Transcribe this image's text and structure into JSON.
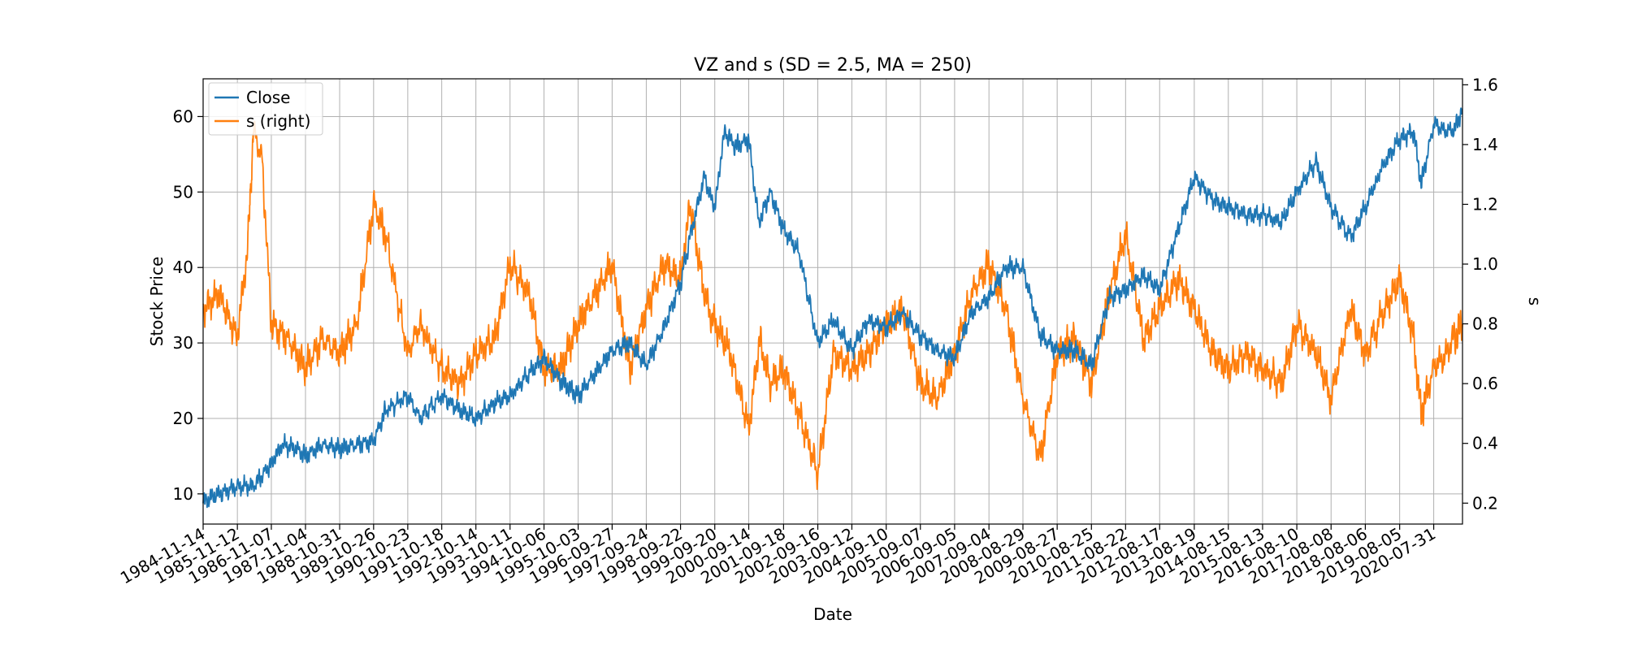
{
  "chart_data": {
    "type": "line",
    "title": "VZ and s (SD = 2.5, MA = 250)",
    "xlabel": "Date",
    "ylabel": "Stock Price",
    "ylabel_right": "s",
    "grid": true,
    "legend_position": "top-left",
    "x_tick_labels": [
      "1984-11-14",
      "1985-11-12",
      "1986-11-07",
      "1987-11-04",
      "1988-10-31",
      "1989-10-26",
      "1990-10-23",
      "1991-10-18",
      "1992-10-14",
      "1993-10-11",
      "1994-10-06",
      "1995-10-03",
      "1996-09-27",
      "1997-09-24",
      "1998-09-22",
      "1999-09-20",
      "2000-09-14",
      "2001-09-18",
      "2002-09-16",
      "2003-09-12",
      "2004-09-10",
      "2005-09-07",
      "2006-09-05",
      "2007-09-04",
      "2008-08-29",
      "2009-08-27",
      "2010-08-25",
      "2011-08-22",
      "2012-08-17",
      "2013-08-19",
      "2014-08-15",
      "2015-08-13",
      "2016-08-10",
      "2017-08-08",
      "2018-08-06",
      "2019-08-05",
      "2020-07-31"
    ],
    "xlim": [
      "1984-11-14",
      "2021-06-01"
    ],
    "ylim": [
      6,
      65
    ],
    "ylim_right": [
      0.13,
      1.62
    ],
    "y_ticks": [
      10,
      20,
      30,
      40,
      50,
      60
    ],
    "y_ticks_right": [
      0.2,
      0.4,
      0.6,
      0.8,
      1.0,
      1.2,
      1.4,
      1.6
    ],
    "series": [
      {
        "name": "Close",
        "axis": "left",
        "color": "#1f77b4",
        "x": [
          "1984-11-14",
          "1985-05-01",
          "1985-11-12",
          "1986-05-01",
          "1986-11-07",
          "1987-03-01",
          "1987-08-01",
          "1987-11-04",
          "1988-05-01",
          "1988-10-31",
          "1989-05-01",
          "1989-10-26",
          "1990-03-01",
          "1990-10-23",
          "1991-03-01",
          "1991-10-18",
          "1992-05-01",
          "1992-10-14",
          "1993-05-01",
          "1993-10-11",
          "1994-05-01",
          "1994-10-06",
          "1995-04-01",
          "1995-10-03",
          "1996-04-01",
          "1996-09-27",
          "1997-04-01",
          "1997-09-24",
          "1998-04-01",
          "1998-09-22",
          "1999-01-01",
          "1999-06-01",
          "1999-09-20",
          "2000-01-01",
          "2000-05-01",
          "2000-09-14",
          "2001-01-01",
          "2001-05-01",
          "2001-09-18",
          "2002-03-01",
          "2002-09-16",
          "2003-03-01",
          "2003-09-12",
          "2004-03-01",
          "2004-09-10",
          "2005-03-01",
          "2005-09-07",
          "2006-03-01",
          "2006-09-05",
          "2007-03-01",
          "2007-09-04",
          "2008-03-01",
          "2008-08-29",
          "2009-03-01",
          "2009-08-27",
          "2010-03-01",
          "2010-08-25",
          "2011-03-01",
          "2011-08-22",
          "2012-03-01",
          "2012-08-17",
          "2013-03-01",
          "2013-08-19",
          "2014-03-01",
          "2014-08-15",
          "2015-03-01",
          "2015-08-13",
          "2016-03-01",
          "2016-08-10",
          "2017-03-01",
          "2017-08-08",
          "2018-03-01",
          "2018-08-06",
          "2019-03-01",
          "2019-08-05",
          "2020-01-01",
          "2020-03-20",
          "2020-07-31",
          "2021-03-01",
          "2021-06-01"
        ],
        "y": [
          9,
          10,
          11,
          11,
          14,
          16.5,
          16,
          15,
          16.5,
          16,
          16.5,
          17,
          21,
          23,
          20,
          23,
          21,
          20,
          22,
          23,
          26,
          28,
          25,
          23,
          26,
          29,
          30,
          27,
          32,
          38,
          44,
          52,
          48,
          58,
          56,
          57,
          46,
          50,
          45,
          42,
          30,
          33,
          29,
          33,
          32,
          34,
          31,
          29,
          28,
          34,
          36,
          40,
          40,
          31,
          29,
          29,
          27,
          36,
          37,
          39,
          37,
          45,
          52,
          49,
          48,
          47,
          47,
          46,
          50,
          54,
          48,
          44,
          48,
          54,
          57,
          58,
          51,
          59,
          58,
          61
        ]
      },
      {
        "name": "s (right)",
        "axis": "right",
        "color": "#ff7f0e",
        "x": [
          "1984-11-14",
          "1985-05-01",
          "1985-11-12",
          "1986-03-01",
          "1986-05-01",
          "1986-08-01",
          "1986-11-07",
          "1987-05-01",
          "1987-11-04",
          "1988-05-01",
          "1988-10-31",
          "1989-05-01",
          "1989-10-26",
          "1990-03-01",
          "1990-10-23",
          "1991-03-01",
          "1991-10-18",
          "1992-05-01",
          "1992-10-14",
          "1993-05-01",
          "1993-10-11",
          "1994-05-01",
          "1994-10-06",
          "1995-04-01",
          "1995-10-03",
          "1996-04-01",
          "1996-09-27",
          "1997-04-01",
          "1997-09-24",
          "1998-04-01",
          "1998-09-22",
          "1999-01-01",
          "1999-06-01",
          "1999-09-20",
          "2000-03-01",
          "2000-09-14",
          "2001-01-01",
          "2001-05-01",
          "2001-09-18",
          "2002-03-01",
          "2002-09-16",
          "2003-03-01",
          "2003-09-12",
          "2004-03-01",
          "2004-09-10",
          "2005-03-01",
          "2005-09-07",
          "2006-03-01",
          "2006-09-05",
          "2007-03-01",
          "2007-09-04",
          "2008-03-01",
          "2008-08-29",
          "2009-03-01",
          "2009-08-27",
          "2010-03-01",
          "2010-08-25",
          "2011-03-01",
          "2011-08-22",
          "2012-03-01",
          "2012-08-17",
          "2013-03-01",
          "2013-08-19",
          "2014-03-01",
          "2014-08-15",
          "2015-03-01",
          "2015-08-13",
          "2016-03-01",
          "2016-08-10",
          "2017-03-01",
          "2017-08-08",
          "2018-03-01",
          "2018-08-06",
          "2019-03-01",
          "2019-08-05",
          "2020-01-01",
          "2020-03-20",
          "2020-07-31",
          "2021-03-01",
          "2021-06-01"
        ],
        "y": [
          0.85,
          0.9,
          0.75,
          1.05,
          1.45,
          1.35,
          0.8,
          0.75,
          0.65,
          0.75,
          0.7,
          0.8,
          1.2,
          1.1,
          0.7,
          0.8,
          0.65,
          0.6,
          0.7,
          0.75,
          1.0,
          0.9,
          0.65,
          0.65,
          0.8,
          0.9,
          1.0,
          0.65,
          0.85,
          1.0,
          0.95,
          1.2,
          0.9,
          0.8,
          0.7,
          0.45,
          0.75,
          0.6,
          0.65,
          0.5,
          0.3,
          0.7,
          0.65,
          0.7,
          0.8,
          0.85,
          0.6,
          0.55,
          0.7,
          0.9,
          1.0,
          0.85,
          0.55,
          0.35,
          0.7,
          0.75,
          0.6,
          0.9,
          1.1,
          0.75,
          0.85,
          0.95,
          0.85,
          0.7,
          0.65,
          0.7,
          0.65,
          0.6,
          0.8,
          0.7,
          0.55,
          0.85,
          0.7,
          0.85,
          0.95,
          0.75,
          0.5,
          0.65,
          0.75,
          0.8
        ]
      }
    ]
  }
}
